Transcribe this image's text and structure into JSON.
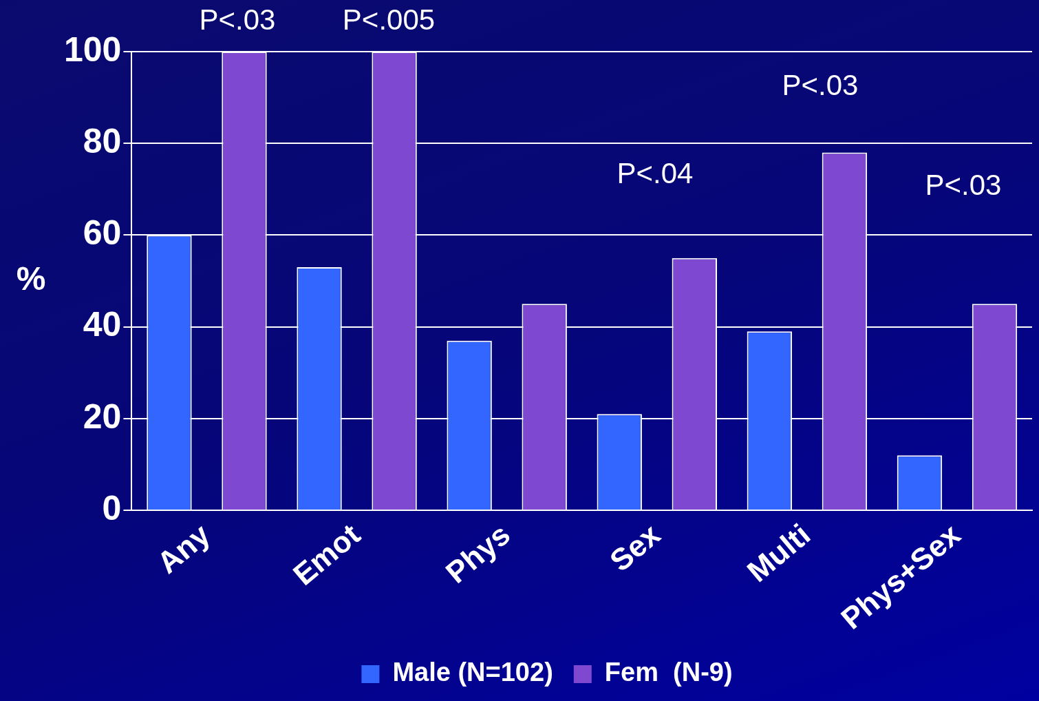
{
  "chart_data": {
    "type": "bar",
    "ylabel": "%",
    "categories": [
      "Any",
      "Emot",
      "Phys",
      "Sex",
      "Multi",
      "Phys+Sex"
    ],
    "series": [
      {
        "name": "Male (N=102)",
        "color": "#3366ff",
        "values": [
          60,
          53,
          37,
          21,
          39,
          12
        ]
      },
      {
        "name": "Fem  (N-9)",
        "color": "#7f48d0",
        "values": [
          100,
          100,
          45,
          55,
          78,
          45
        ]
      }
    ],
    "ylim": [
      0,
      100
    ],
    "yticks": [
      0,
      20,
      40,
      60,
      80,
      100
    ],
    "grid": "y",
    "legend": "bottom",
    "annotations": [
      "P<.03",
      "P<.005",
      "P<.04",
      "P<.03",
      "P<.03"
    ]
  }
}
